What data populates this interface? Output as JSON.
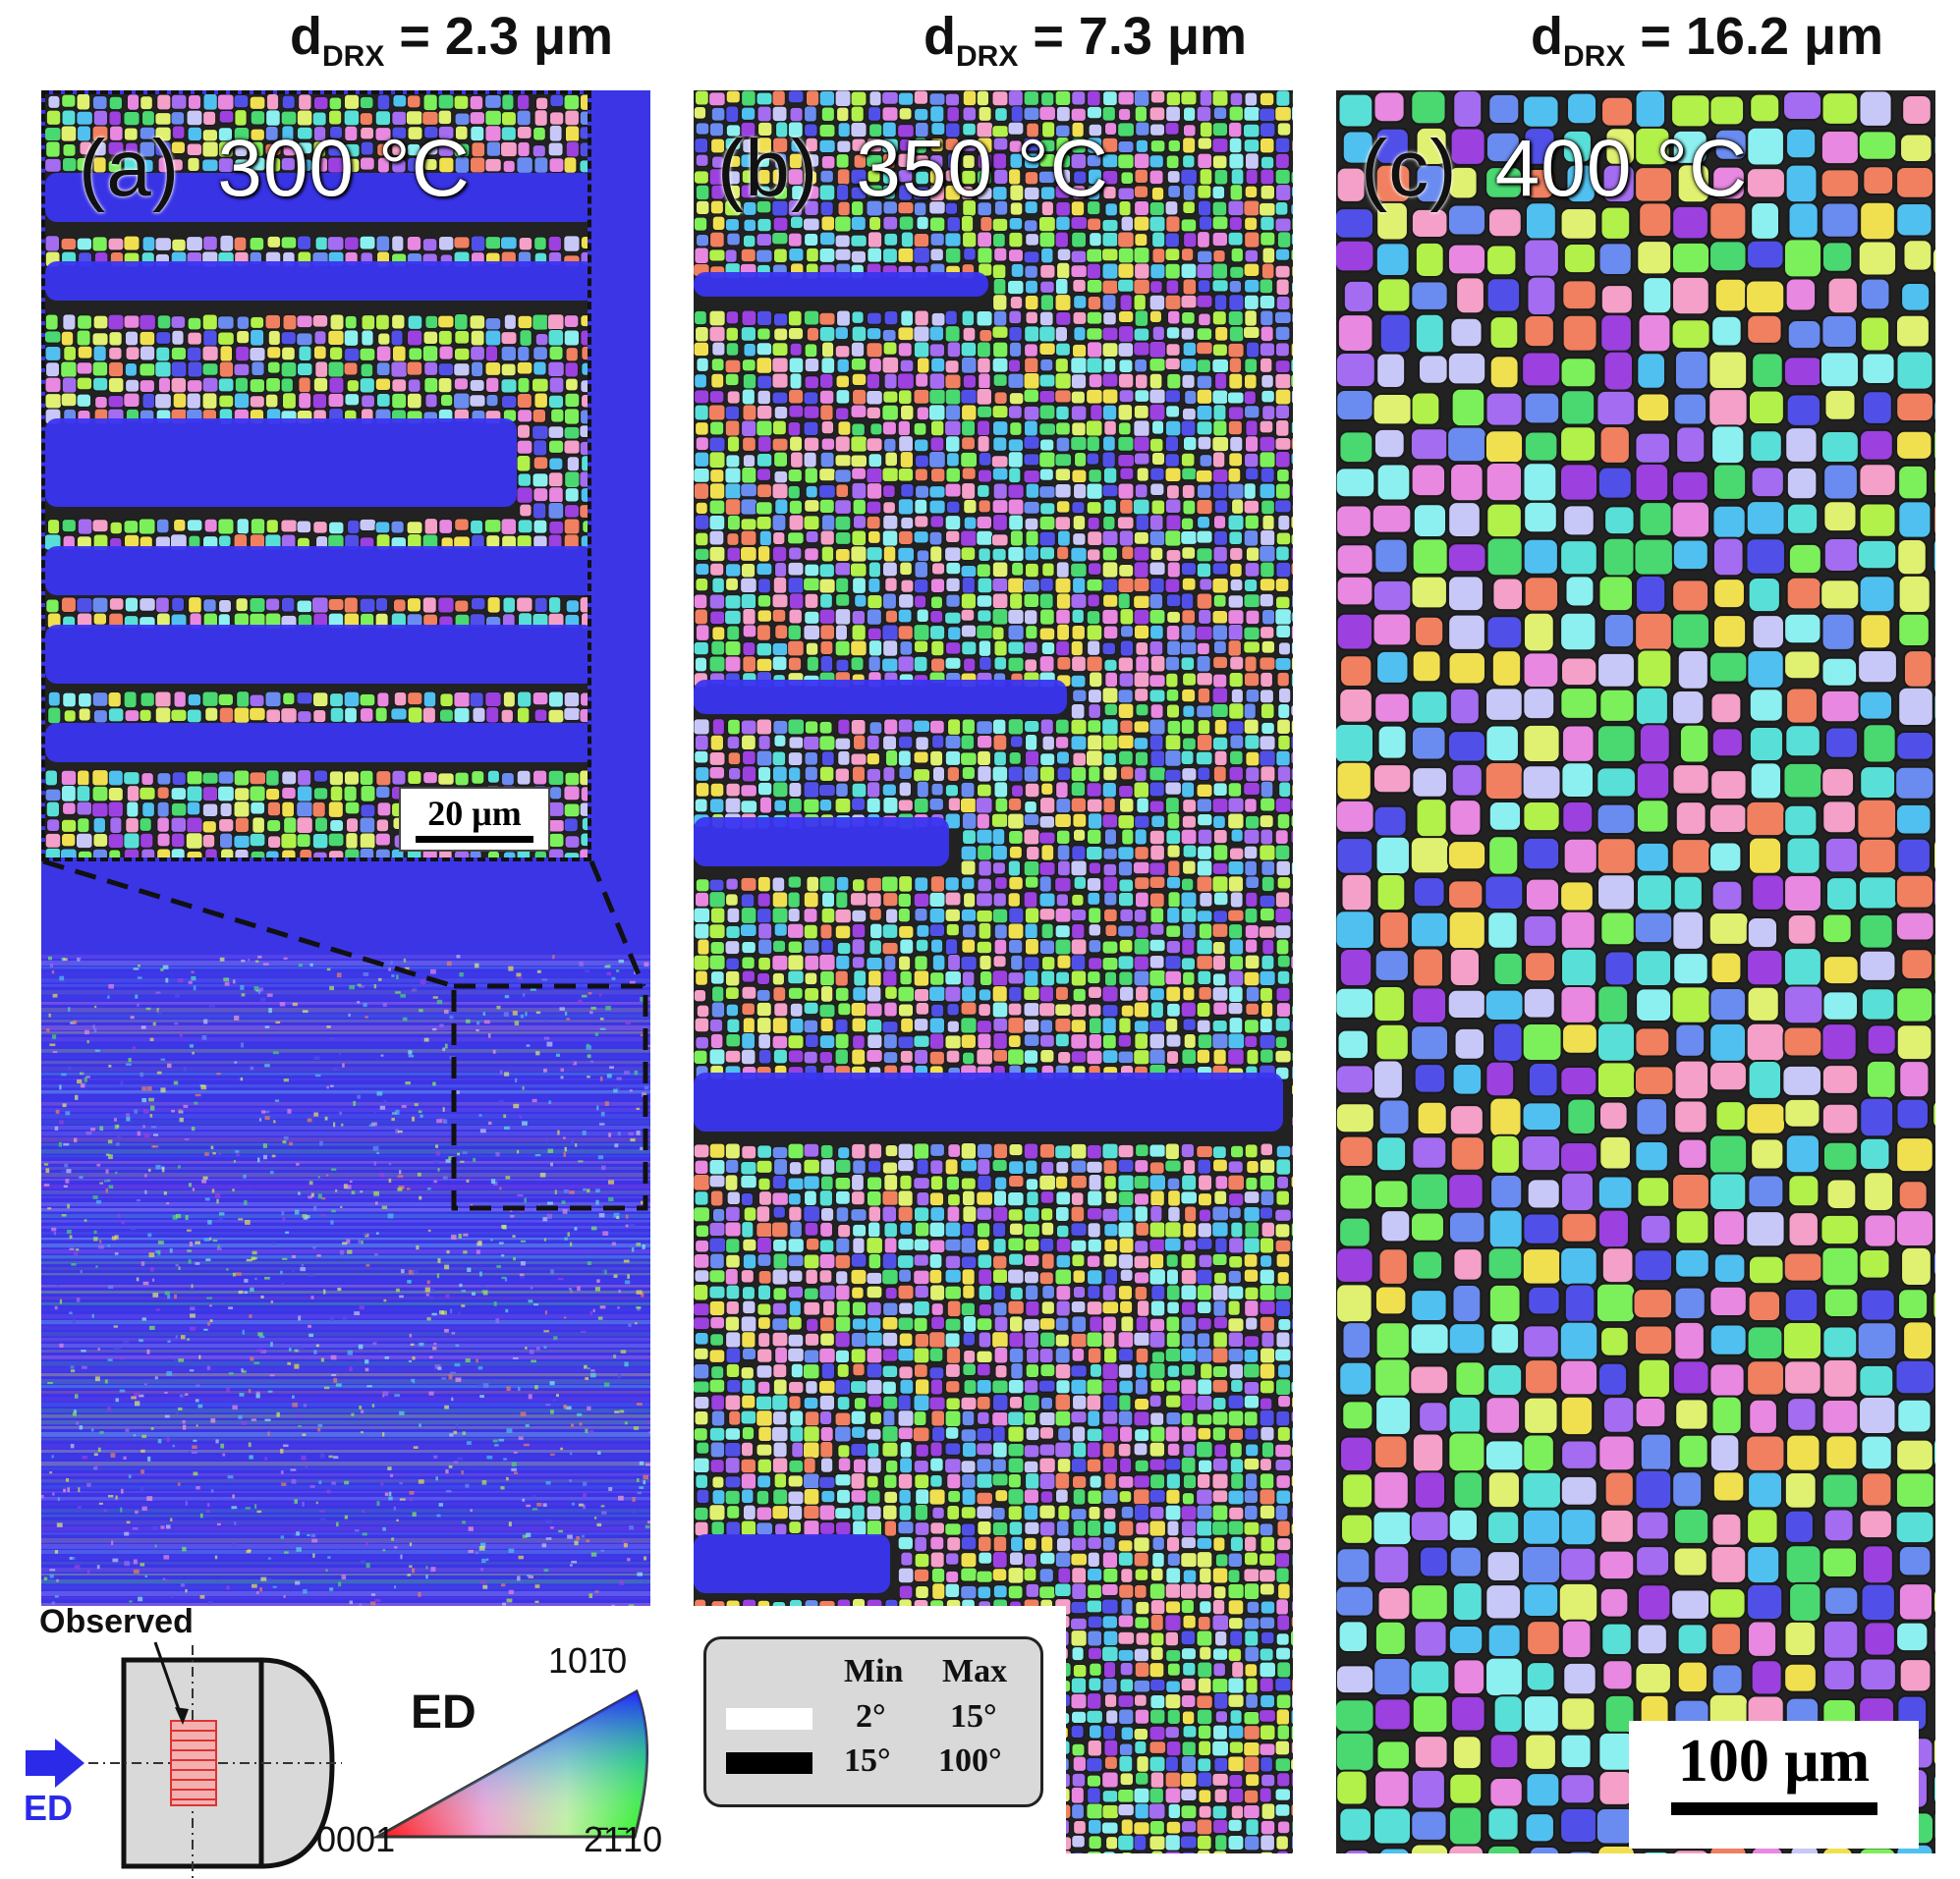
{
  "panels": [
    {
      "label": "(a)",
      "temperature": "300 °C",
      "d_drx_prefix": "d",
      "d_drx_sub": "DRX",
      "d_drx_value": "= 2.3 μm",
      "inset_scale_bar": "20 μm"
    },
    {
      "label": "(b)",
      "temperature": "350 °C",
      "d_drx_prefix": "d",
      "d_drx_sub": "DRX",
      "d_drx_value": "= 7.3 μm"
    },
    {
      "label": "(c)",
      "temperature": "400 °C",
      "d_drx_prefix": "d",
      "d_drx_sub": "DRX",
      "d_drx_value": "= 16.2 μm",
      "scale_bar": "100 μm"
    }
  ],
  "legend": {
    "observed_label": "Observed",
    "ed_arrow_label": "ED",
    "ipf_direction": "ED",
    "ipf_corner_bottom_left": "0001",
    "ipf_corner_top": "101̄0",
    "ipf_corner_bottom_right": "2̄1̄10",
    "boundaries": {
      "header_min": "Min",
      "header_max": "Max",
      "rows": [
        {
          "color": "#ffffff",
          "min": "2°",
          "max": "15°"
        },
        {
          "color": "#000000",
          "min": "15°",
          "max": "100°"
        }
      ]
    }
  },
  "colors": {
    "deformed_grain_blue": "#3a35f0",
    "recrystallized_palette": [
      "#7cf05a",
      "#b2f04a",
      "#58e0d8",
      "#6a8cf0",
      "#a46cf0",
      "#e888e0",
      "#f0e050",
      "#f4a0c8",
      "#8cf0f0",
      "#4ad870",
      "#c8c8f8",
      "#5050e8",
      "#9c40e0",
      "#e0f070",
      "#50c0f0",
      "#f08060"
    ]
  }
}
